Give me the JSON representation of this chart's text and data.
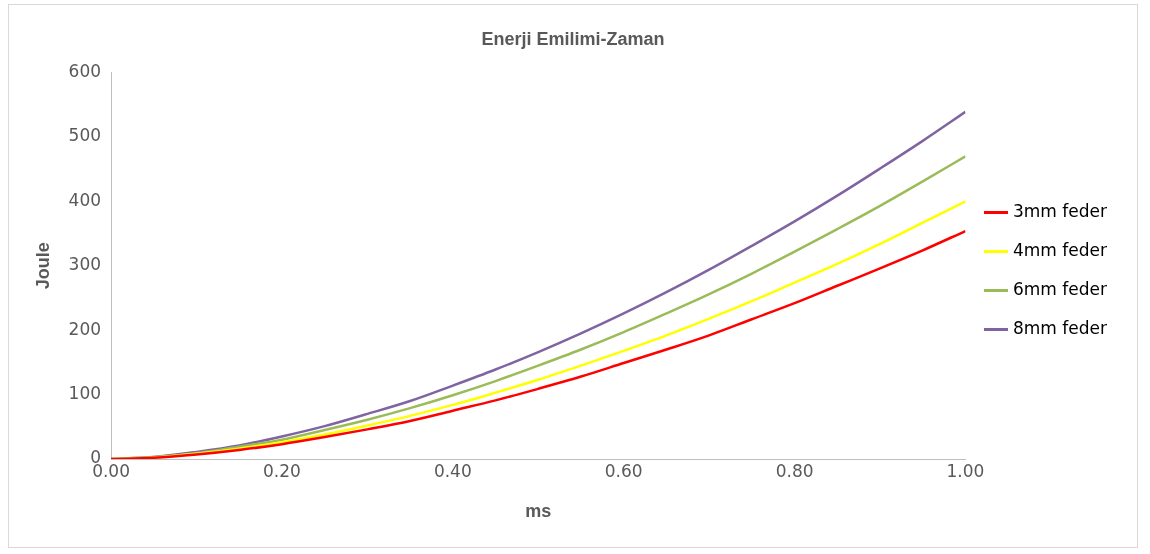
{
  "chart_data": {
    "type": "line",
    "title": "Enerji Emilimi-Zaman",
    "xlabel": "ms",
    "ylabel": "Joule",
    "x": [
      0,
      0.05,
      0.1,
      0.15,
      0.2,
      0.25,
      0.3,
      0.35,
      0.4,
      0.45,
      0.5,
      0.55,
      0.6,
      0.65,
      0.7,
      0.75,
      0.8,
      0.85,
      0.9,
      0.95,
      1.0
    ],
    "series": [
      {
        "name": "3mm feder",
        "color": "#ff0000",
        "values": [
          0,
          2,
          7,
          14,
          23,
          34,
          46,
          59,
          75,
          91,
          109,
          128,
          149,
          170,
          192,
          217,
          242,
          269,
          296,
          324,
          354
        ]
      },
      {
        "name": "4mm feder",
        "color": "#ffff00",
        "values": [
          0,
          2,
          8,
          16,
          26,
          38,
          52,
          67,
          84,
          103,
          123,
          145,
          168,
          192,
          218,
          245,
          274,
          303,
          334,
          367,
          400
        ]
      },
      {
        "name": "6mm feder",
        "color": "#9bbb59",
        "values": [
          0,
          3,
          9,
          19,
          30,
          45,
          61,
          79,
          99,
          121,
          145,
          170,
          197,
          226,
          256,
          288,
          322,
          357,
          393,
          431,
          470
        ]
      },
      {
        "name": "8mm feder",
        "color": "#8064a2",
        "values": [
          0,
          3,
          11,
          21,
          35,
          51,
          70,
          90,
          114,
          139,
          166,
          195,
          226,
          259,
          294,
          331,
          369,
          409,
          451,
          494,
          539
        ]
      }
    ],
    "xlim": [
      0,
      1.0
    ],
    "xticks": [
      {
        "value": 0,
        "label": "0.00"
      },
      {
        "value": 0.2,
        "label": "0.20"
      },
      {
        "value": 0.4,
        "label": "0.40"
      },
      {
        "value": 0.6,
        "label": "0.60"
      },
      {
        "value": 0.8,
        "label": "0.80"
      },
      {
        "value": 1.0,
        "label": "1.00"
      }
    ],
    "ylim": [
      0,
      600
    ],
    "yticks": [
      0,
      100,
      200,
      300,
      400,
      500,
      600
    ],
    "grid": false,
    "legend": "right",
    "marker": "none",
    "line_style": "solid"
  }
}
